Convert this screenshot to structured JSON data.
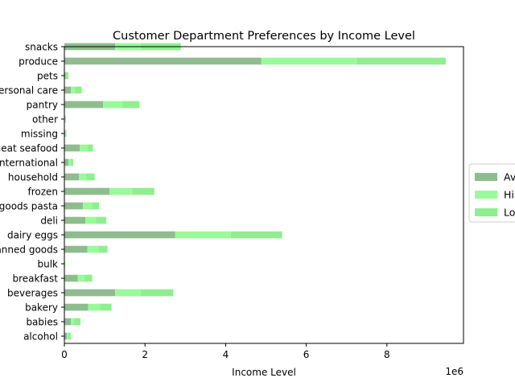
{
  "chart_data": {
    "type": "bar",
    "orientation": "horizontal",
    "stacked": true,
    "title": "Customer Department Preferences by Income Level",
    "xlabel": "Income Level",
    "ylabel": "",
    "x_offset_label": "1e6",
    "xlim": [
      0,
      9900000
    ],
    "xticks": [
      0,
      2000000,
      4000000,
      6000000,
      8000000
    ],
    "xtick_labels": [
      "0",
      "2",
      "4",
      "6",
      "8"
    ],
    "categories": [
      "alcohol",
      "babies",
      "bakery",
      "beverages",
      "breakfast",
      "bulk",
      "canned goods",
      "dairy eggs",
      "deli",
      "dry goods pasta",
      "frozen",
      "household",
      "international",
      "meat seafood",
      "missing",
      "other",
      "pantry",
      "personal care",
      "pets",
      "produce",
      "snacks"
    ],
    "series": [
      {
        "name": "Av",
        "color": "#8fbc8f",
        "values": [
          60000,
          160000,
          590000,
          1260000,
          330000,
          8000,
          570000,
          2750000,
          520000,
          460000,
          1120000,
          360000,
          100000,
          380000,
          20000,
          15000,
          960000,
          160000,
          30000,
          4880000,
          1260000
        ]
      },
      {
        "name": "Hi",
        "color": "#98fb98",
        "values": [
          40000,
          80000,
          290000,
          630000,
          170000,
          4000,
          280000,
          1380000,
          260000,
          230000,
          560000,
          180000,
          60000,
          190000,
          10000,
          8000,
          480000,
          100000,
          20000,
          2370000,
          630000
        ]
      },
      {
        "name": "Lo",
        "color": "#90ee90",
        "values": [
          60000,
          160000,
          290000,
          810000,
          190000,
          8000,
          220000,
          1270000,
          260000,
          170000,
          550000,
          210000,
          60000,
          140000,
          20000,
          15000,
          420000,
          170000,
          50000,
          2210000,
          1000000
        ]
      }
    ],
    "legend": "center-right",
    "grid": false
  }
}
